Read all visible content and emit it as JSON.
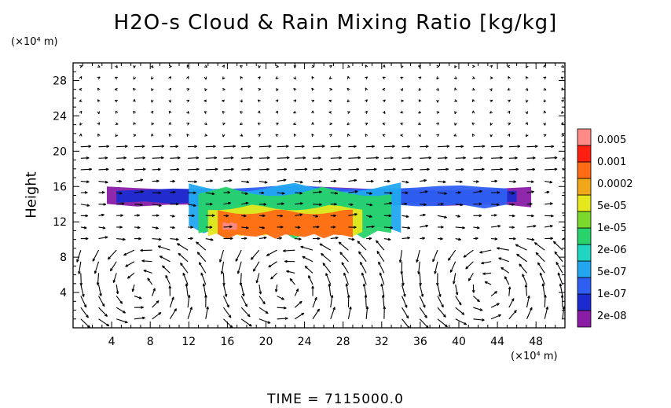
{
  "chart_data": {
    "type": "heatmap",
    "title": "H2O-s Cloud & Rain Mixing Ratio [kg/kg]",
    "ylabel": "Height",
    "x_unit": "(×10⁴ m)",
    "y_unit": "(×10⁴ m)",
    "footer": "TIME =  7115000.0",
    "xlim": [
      0,
      51
    ],
    "ylim": [
      0,
      30
    ],
    "x_ticks": [
      4,
      8,
      12,
      16,
      20,
      24,
      28,
      32,
      36,
      40,
      44,
      48
    ],
    "y_ticks": [
      4,
      8,
      12,
      16,
      20,
      24,
      28
    ],
    "colorbar": {
      "labels": [
        "2e-08",
        "1e-07",
        "5e-07",
        "2e-06",
        "1e-05",
        "5e-05",
        "0.0002",
        "0.001",
        "0.005"
      ],
      "colors": [
        "#8a1ca6",
        "#1c2bcf",
        "#2f5ff2",
        "#22a6f0",
        "#1fd6c2",
        "#27d36a",
        "#7ad92a",
        "#e6e81e",
        "#f0a818",
        "#ff6a14",
        "#ff1f10",
        "#ff8a86"
      ]
    },
    "regions": [
      {
        "level": 0,
        "x": [
          3.5,
          47.5
        ],
        "y": [
          13.6,
          16.0
        ]
      },
      {
        "level": 1,
        "x": [
          4.5,
          46.0
        ],
        "y": [
          14.0,
          15.8
        ]
      },
      {
        "level": 2,
        "x": [
          12,
          45
        ],
        "y": [
          13.5,
          16.2
        ]
      },
      {
        "level": 3,
        "x": [
          12,
          34
        ],
        "y": [
          10.5,
          16.5
        ]
      },
      {
        "level": 5,
        "x": [
          13,
          33
        ],
        "y": [
          10.0,
          16.0
        ]
      },
      {
        "level": 7,
        "x": [
          14,
          30
        ],
        "y": [
          10.2,
          14.0
        ]
      },
      {
        "level": 9,
        "x": [
          15,
          29
        ],
        "y": [
          10.0,
          13.5
        ]
      },
      {
        "level": 11,
        "x": [
          15.5,
          17
        ],
        "y": [
          11.0,
          12.0
        ]
      }
    ]
  }
}
